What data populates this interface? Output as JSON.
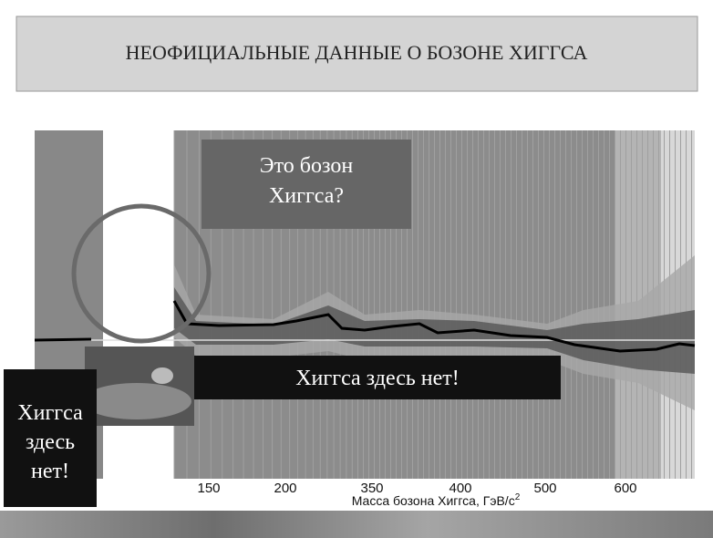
{
  "header": {
    "title": "НЕОФИЦИАЛЬНЫЕ ДАННЫЕ О БОЗОНЕ ХИГГСА"
  },
  "callouts": {
    "question": [
      "Это бозон",
      "Хиггса?"
    ],
    "excluded_wide": "Хиггса здесь нет!",
    "excluded_left": [
      "Хиггса",
      "здесь",
      "нет!"
    ]
  },
  "axis": {
    "ticks": [
      "150",
      "200",
      "350",
      "400",
      "500",
      "600"
    ],
    "label": "Масса бозона Хиггса, ГэВ/с",
    "label_sup": "2"
  }
}
